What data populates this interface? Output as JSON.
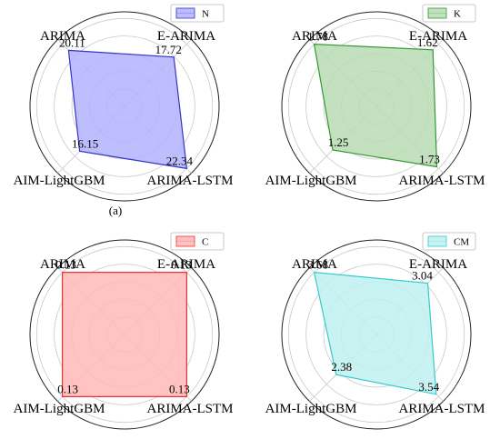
{
  "axes_labels": [
    "ARIMA",
    "E-ARIMA",
    "ARIMA-LSTM",
    "AIM-LightGBM"
  ],
  "chart_data": [
    {
      "type": "radar",
      "series": [
        {
          "name": "N",
          "values": [
            20.11,
            17.72,
            22.34,
            16.15
          ],
          "labels": [
            "20.11",
            "17.72",
            "22.34",
            "16.15"
          ]
        }
      ],
      "rmax": 22.34,
      "caption": "(a)",
      "color": "#3333cc",
      "fill": "#b3b3ff"
    },
    {
      "type": "radar",
      "series": [
        {
          "name": "K",
          "values": [
            1.78,
            1.62,
            1.73,
            1.25
          ],
          "labels": [
            "1.78",
            "1.62",
            "1.73",
            "1.25"
          ]
        }
      ],
      "rmax": 1.78,
      "caption": "",
      "color": "#339933",
      "fill": "#b9dcb3"
    },
    {
      "type": "radar",
      "series": [
        {
          "name": "C",
          "values": [
            0.13,
            0.13,
            0.13,
            0.13
          ],
          "labels": [
            "0.13",
            "0.13",
            "0.13",
            "0.13"
          ]
        }
      ],
      "rmax": 0.13,
      "caption": "",
      "color": "#ee3333",
      "fill": "#ffb8b8"
    },
    {
      "type": "radar",
      "series": [
        {
          "name": "CM",
          "values": [
            3.68,
            3.04,
            3.54,
            2.38
          ],
          "labels": [
            "3.68",
            "3.04",
            "3.54",
            "2.38"
          ]
        }
      ],
      "rmax": 3.68,
      "caption": "",
      "color": "#33cccc",
      "fill": "#bff0f0"
    }
  ]
}
